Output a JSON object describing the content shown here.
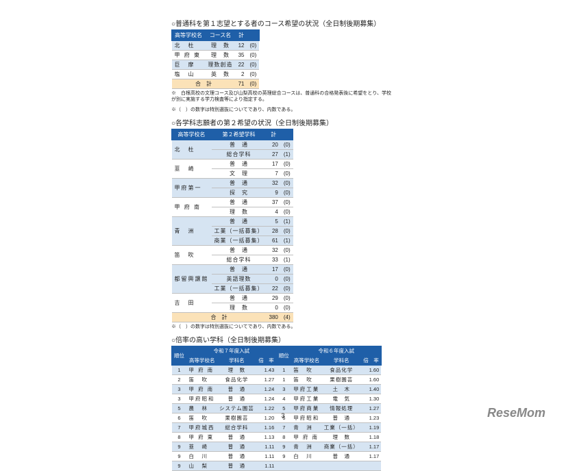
{
  "section1": {
    "title": "○普通科を第１志望とする者のコース希望の状況（全日制後期募集）",
    "headers": [
      "高等学校名",
      "コース名",
      "計",
      ""
    ],
    "rows": [
      {
        "school": "北　杜",
        "course": "理　数",
        "count": 12,
        "paren": "(0)",
        "cls": "row-blue"
      },
      {
        "school": "甲 府 東",
        "course": "理　数",
        "count": 35,
        "paren": "(0)",
        "cls": "row-white"
      },
      {
        "school": "巨　摩",
        "course": "理数創造",
        "count": 22,
        "paren": "(0)",
        "cls": "row-blue"
      },
      {
        "school": "塩　山",
        "course": "英　数",
        "count": 2,
        "paren": "(0)",
        "cls": "row-white"
      }
    ],
    "total": {
      "label": "合　計",
      "count": 71,
      "paren": "(0)"
    },
    "note1": "※　白根高校の文理コース及び山梨高校の英理総合コースは、普通科の合格発表後に希望をとり、学校が別に実施する学力検査等により指定する。",
    "note2": "※（　）の数字は特別選抜についてであり、内数である。"
  },
  "section2": {
    "title": "○各学科志願者の第２希望の状況（全日制後期募集）",
    "headers": [
      "高等学校名",
      "第２希望学科",
      "計",
      ""
    ],
    "groups": [
      {
        "school": "北　杜",
        "cls": "row-blue",
        "rows": [
          {
            "dept": "普　通",
            "count": 20,
            "paren": "(0)"
          },
          {
            "dept": "総合学科",
            "count": 27,
            "paren": "(1)"
          }
        ]
      },
      {
        "school": "韮　崎",
        "cls": "row-white",
        "rows": [
          {
            "dept": "普　通",
            "count": 17,
            "paren": "(0)"
          },
          {
            "dept": "文　理",
            "count": 7,
            "paren": "(0)"
          }
        ]
      },
      {
        "school": "甲府第一",
        "cls": "row-blue",
        "rows": [
          {
            "dept": "普　通",
            "count": 32,
            "paren": "(0)"
          },
          {
            "dept": "探　究",
            "count": 9,
            "paren": "(0)"
          }
        ]
      },
      {
        "school": "甲 府 南",
        "cls": "row-white",
        "rows": [
          {
            "dept": "普　通",
            "count": 37,
            "paren": "(0)"
          },
          {
            "dept": "理　数",
            "count": 4,
            "paren": "(0)"
          }
        ]
      },
      {
        "school": "青　洲",
        "cls": "row-blue",
        "rows": [
          {
            "dept": "普　通",
            "count": 5,
            "paren": "(1)"
          },
          {
            "dept": "工業（一括募集）",
            "count": 28,
            "paren": "(0)"
          },
          {
            "dept": "商業（一括募集）",
            "count": 61,
            "paren": "(1)"
          }
        ]
      },
      {
        "school": "笛　吹",
        "cls": "row-white",
        "rows": [
          {
            "dept": "普　通",
            "count": 32,
            "paren": "(0)"
          },
          {
            "dept": "総合学科",
            "count": 33,
            "paren": "(1)"
          }
        ]
      },
      {
        "school": "都留興譲館",
        "cls": "row-blue",
        "rows": [
          {
            "dept": "普　通",
            "count": 17,
            "paren": "(0)"
          },
          {
            "dept": "英語理数",
            "count": 0,
            "paren": "(0)"
          },
          {
            "dept": "工業（一括募集）",
            "count": 22,
            "paren": "(0)"
          }
        ]
      },
      {
        "school": "吉　田",
        "cls": "row-white",
        "rows": [
          {
            "dept": "普　通",
            "count": 29,
            "paren": "(0)"
          },
          {
            "dept": "理　数",
            "count": 0,
            "paren": "(0)"
          }
        ]
      }
    ],
    "total": {
      "label": "合　計",
      "count": 380,
      "paren": "(4)"
    },
    "note": "※（　）の数字は特別選抜についてであり、内数である。"
  },
  "section3": {
    "title": "○倍率の高い学科（全日制後期募集）",
    "headerTop": [
      "",
      "令和７年度入試",
      "令和６年度入試"
    ],
    "headerSub": [
      "順位",
      "高等学校名",
      "学科名",
      "倍　率",
      "順位",
      "高等学校名",
      "学科名",
      "倍　率"
    ],
    "rows": [
      {
        "cls": "row-blue",
        "r7": {
          "rank": 1,
          "school": "甲 府 南",
          "dept": "理　数",
          "rate": "1.43"
        },
        "r6": {
          "rank": 1,
          "school": "笛　吹",
          "dept": "食品化学",
          "rate": "1.60"
        }
      },
      {
        "cls": "row-white",
        "r7": {
          "rank": 2,
          "school": "笛　吹",
          "dept": "食品化学",
          "rate": "1.27"
        },
        "r6": {
          "rank": 1,
          "school": "笛　吹",
          "dept": "果樹園芸",
          "rate": "1.60"
        }
      },
      {
        "cls": "row-blue",
        "r7": {
          "rank": 3,
          "school": "甲 府 南",
          "dept": "普　通",
          "rate": "1.24"
        },
        "r6": {
          "rank": 3,
          "school": "甲府工業",
          "dept": "土　木",
          "rate": "1.40"
        }
      },
      {
        "cls": "row-white",
        "r7": {
          "rank": 3,
          "school": "甲府昭和",
          "dept": "普　通",
          "rate": "1.24"
        },
        "r6": {
          "rank": 4,
          "school": "甲府工業",
          "dept": "電　気",
          "rate": "1.30"
        }
      },
      {
        "cls": "row-blue",
        "r7": {
          "rank": 5,
          "school": "農　林",
          "dept": "システム園芸",
          "rate": "1.22"
        },
        "r6": {
          "rank": 5,
          "school": "甲府商業",
          "dept": "情報処理",
          "rate": "1.27"
        }
      },
      {
        "cls": "row-white",
        "r7": {
          "rank": 6,
          "school": "笛　吹",
          "dept": "果樹園芸",
          "rate": "1.20"
        },
        "r6": {
          "rank": 6,
          "school": "甲府昭和",
          "dept": "普　通",
          "rate": "1.23"
        }
      },
      {
        "cls": "row-blue",
        "r7": {
          "rank": 7,
          "school": "甲府城西",
          "dept": "総合学科",
          "rate": "1.16"
        },
        "r6": {
          "rank": 7,
          "school": "青　洲",
          "dept": "工業（一括）",
          "rate": "1.19"
        }
      },
      {
        "cls": "row-white",
        "r7": {
          "rank": 8,
          "school": "甲 府 東",
          "dept": "普　通",
          "rate": "1.13"
        },
        "r6": {
          "rank": 8,
          "school": "甲 府 南",
          "dept": "理　数",
          "rate": "1.18"
        }
      },
      {
        "cls": "row-blue",
        "r7": {
          "rank": 9,
          "school": "韮　崎",
          "dept": "普　通",
          "rate": "1.11"
        },
        "r6": {
          "rank": 9,
          "school": "青　洲",
          "dept": "商業（一括）",
          "rate": "1.17"
        }
      },
      {
        "cls": "row-white",
        "r7": {
          "rank": 9,
          "school": "白　川",
          "dept": "普　通",
          "rate": "1.11"
        },
        "r6": {
          "rank": 9,
          "school": "白　川",
          "dept": "普　通",
          "rate": "1.17"
        }
      },
      {
        "cls": "row-blue",
        "r7": {
          "rank": 9,
          "school": "山　梨",
          "dept": "普　通",
          "rate": "1.11"
        },
        "r6": null
      }
    ]
  },
  "pageNumber": "3",
  "logo": "ReseMom"
}
